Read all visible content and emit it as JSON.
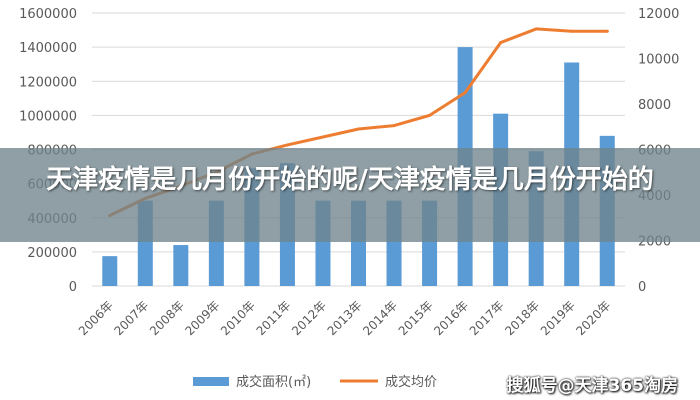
{
  "banner": {
    "title": "天津疫情是几月份开始的呢/天津疫情是几月份开始的"
  },
  "watermark": {
    "text": "搜狐号@天津365淘房"
  },
  "colors": {
    "bar": "#5B9BD5",
    "line": "#ED7D31",
    "grid": "#D9D9D9",
    "axis_text": "#595959"
  },
  "chart_data": {
    "type": "bar",
    "categories": [
      "2006年",
      "2007年",
      "2008年",
      "2009年",
      "2010年",
      "2011年",
      "2012年",
      "2013年",
      "2014年",
      "2015年",
      "2016年",
      "2017年",
      "2018年",
      "2019年",
      "2020年"
    ],
    "series": [
      {
        "name": "成交面积(㎡)",
        "type": "bar",
        "axis": "left",
        "values": [
          175000,
          500000,
          240000,
          500000,
          690000,
          720000,
          500000,
          500000,
          500000,
          500000,
          1400000,
          1010000,
          790000,
          1310000,
          880000
        ]
      },
      {
        "name": "成交均价",
        "type": "line",
        "axis": "right",
        "values": [
          3100,
          3850,
          4400,
          5000,
          5800,
          6200,
          6550,
          6900,
          7050,
          7500,
          8500,
          10700,
          11300,
          11200,
          11200
        ]
      }
    ],
    "y_left": {
      "min": 0,
      "max": 1600000,
      "step": 200000,
      "ticks": [
        "0",
        "200000",
        "400000",
        "600000",
        "800000",
        "1000000",
        "1200000",
        "1400000",
        "1600000"
      ]
    },
    "y_right": {
      "min": 0,
      "max": 12000,
      "step": 2000,
      "ticks": [
        "0",
        "2000",
        "4000",
        "6000",
        "8000",
        "10000",
        "12000"
      ]
    },
    "grid": true,
    "legend": {
      "position": "bottom",
      "entries": [
        "成交面积(㎡)",
        "成交均价"
      ]
    },
    "title": "",
    "xlabel": "",
    "ylabel": ""
  }
}
